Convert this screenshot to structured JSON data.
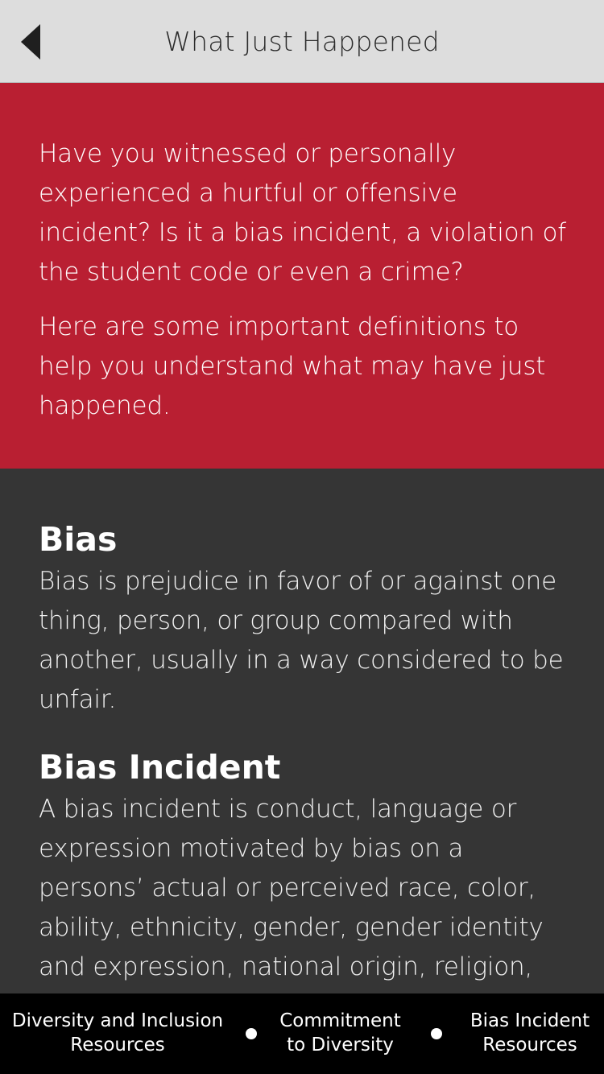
{
  "header": {
    "title": "What Just Happened",
    "back_icon": "back-arrow-icon"
  },
  "intro": {
    "paragraphs": [
      "Have you witnessed or personally experienced a hurtful or offensive incident? Is it a bias incident, a violation of the student code or even a crime?",
      "Here are some important definitions to help you understand what may have just happened."
    ]
  },
  "definitions": [
    {
      "term": "Bias",
      "text": "Bias is prejudice in favor of or against one thing, person, or group compared with another, usually in a way considered to be unfair."
    },
    {
      "term": "Bias Incident",
      "text": "A bias incident is conduct, language or expression motivated by bias on a persons’ actual or perceived race, color, ability, ethnicity, gender, gender identity and expression, national origin, religion,"
    }
  ],
  "tabbar": {
    "tabs": [
      {
        "line1": "Diversity and Inclusion",
        "line2": "Resources"
      },
      {
        "line1": "Commitment",
        "line2": "to Diversity"
      },
      {
        "line1": "Bias Incident",
        "line2": "Resources"
      }
    ]
  },
  "colors": {
    "header_bg": "#dddddd",
    "intro_bg": "#b91f32",
    "content_bg": "#353535",
    "tabbar_bg": "#000000"
  }
}
